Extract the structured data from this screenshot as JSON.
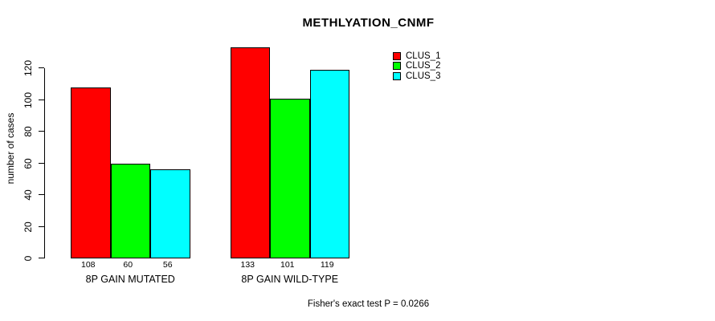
{
  "figure": {
    "background": "#FFFFFF",
    "text_color": "#000000"
  },
  "chart_data": {
    "type": "bar",
    "title": "METHLYATION_CNMF",
    "xlabel": "",
    "ylabel": "number of cases",
    "categories": [
      "8P GAIN MUTATED",
      "8P GAIN WILD-TYPE"
    ],
    "series": [
      {
        "name": "CLUS_1",
        "color": "#FF0000",
        "values": [
          108,
          133
        ]
      },
      {
        "name": "CLUS_2",
        "color": "#00FF00",
        "values": [
          60,
          101
        ]
      },
      {
        "name": "CLUS_3",
        "color": "#00FFFF",
        "values": [
          56,
          119
        ]
      }
    ],
    "bar_value_labels": [
      [
        108,
        60,
        56
      ],
      [
        133,
        101,
        119
      ]
    ],
    "yticks": [
      0,
      20,
      40,
      60,
      80,
      100,
      120
    ],
    "ylim": [
      0,
      140
    ],
    "grid": false,
    "bar_border_color": "#000000",
    "legend_position": "top-right",
    "annotation": "Fisher's exact test P = 0.0266"
  }
}
